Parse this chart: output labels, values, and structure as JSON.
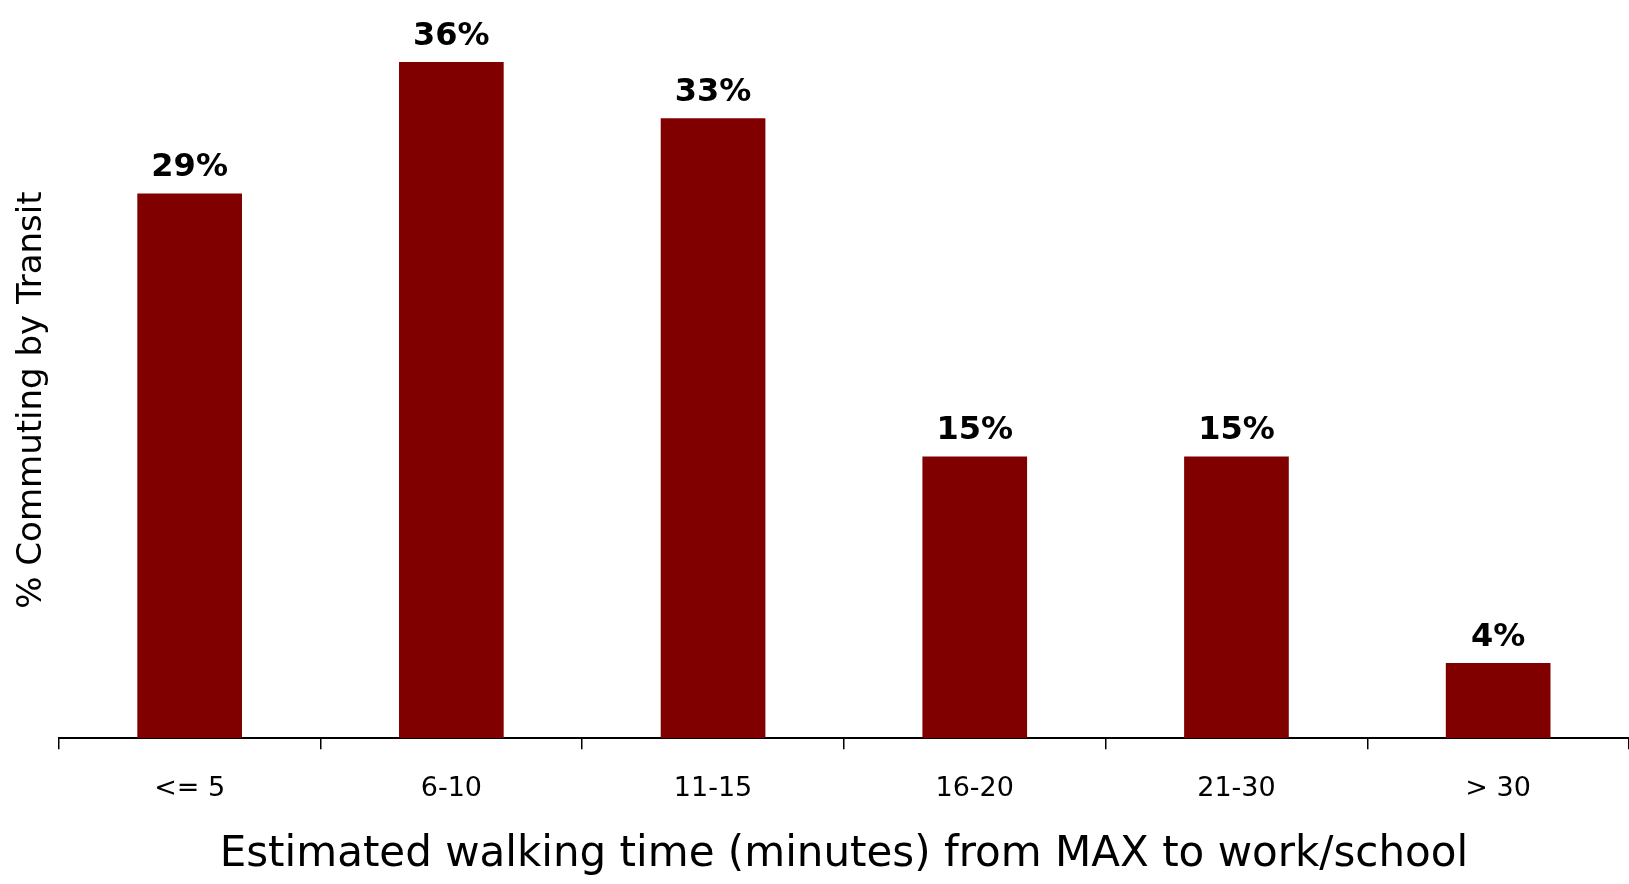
{
  "chart_data": {
    "type": "bar",
    "xlabel": "Estimated walking time (minutes) from MAX to work/school",
    "ylabel": "% Commuting by Transit",
    "categories": [
      "<= 5",
      "6-10",
      "11-15",
      "16-20",
      "21-30",
      "> 30"
    ],
    "values": [
      29,
      36,
      33,
      15,
      15,
      4
    ],
    "value_labels": [
      "29%",
      "36%",
      "33%",
      "15%",
      "15%",
      "4%"
    ],
    "color": "#800000",
    "grid": false,
    "legend": false
  }
}
